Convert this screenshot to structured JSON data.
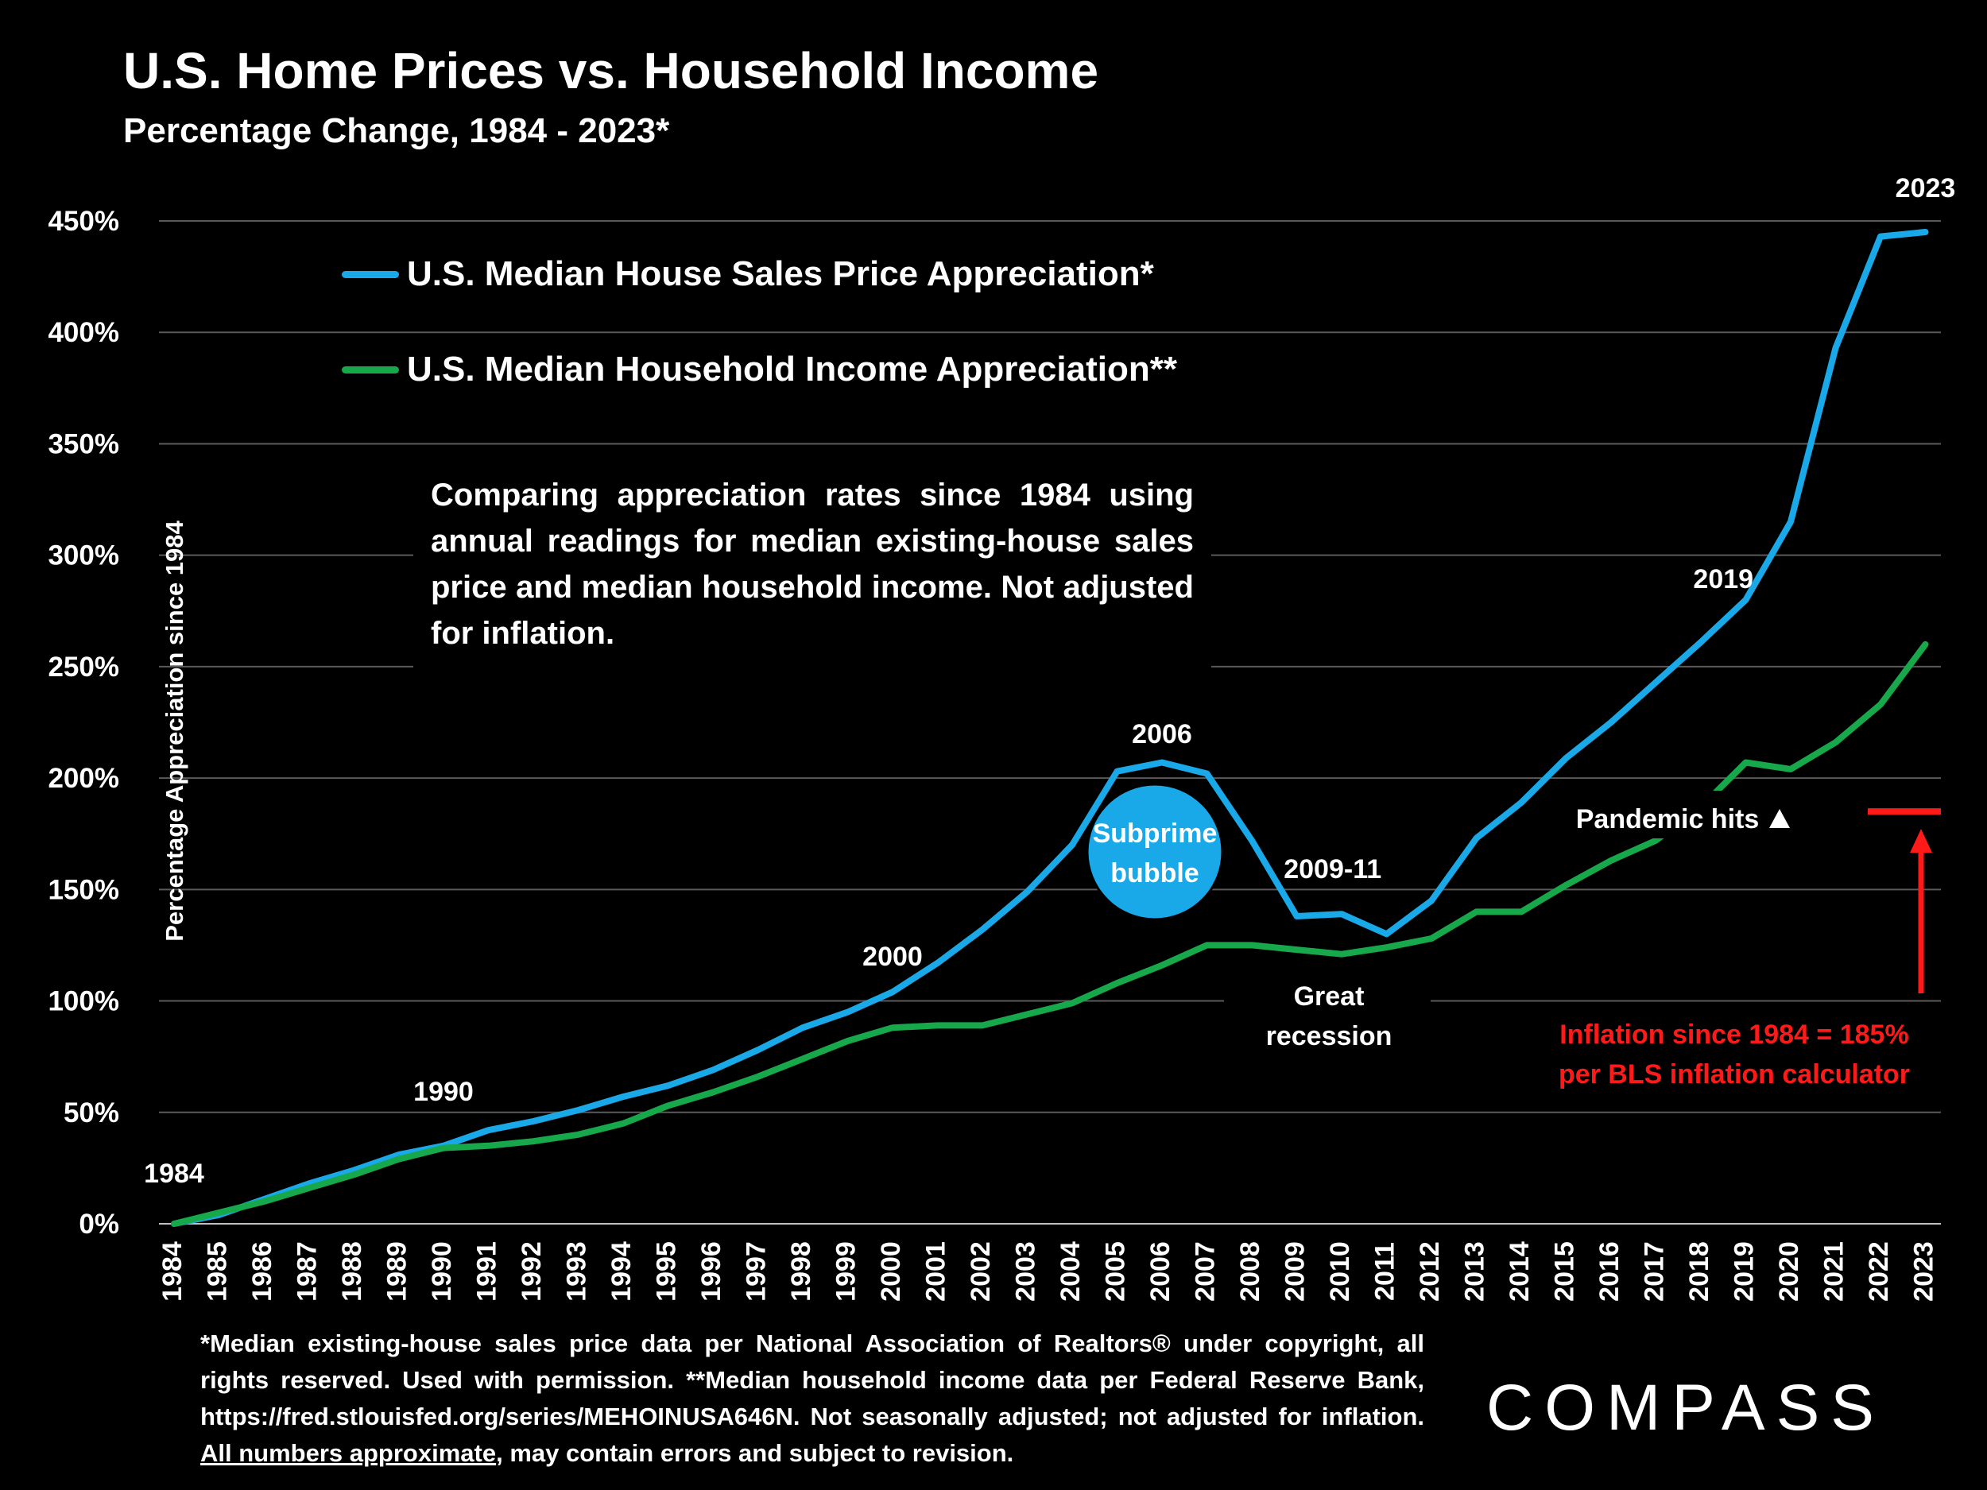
{
  "chart_data": {
    "type": "line",
    "title": "U.S. Home Prices vs. Household Income",
    "subtitle": "Percentage Change, 1984 - 2023*",
    "ylabel": "Percentage Appreciation since 1984",
    "ylim": [
      0,
      450
    ],
    "y_ticks": [
      "0%",
      "50%",
      "100%",
      "150%",
      "200%",
      "250%",
      "300%",
      "350%",
      "400%",
      "450%"
    ],
    "x": [
      "1984",
      "1985",
      "1986",
      "1987",
      "1988",
      "1989",
      "1990",
      "1991",
      "1992",
      "1993",
      "1994",
      "1995",
      "1996",
      "1997",
      "1998",
      "1999",
      "2000",
      "2001",
      "2002",
      "2003",
      "2004",
      "2005",
      "2006",
      "2007",
      "2008",
      "2009",
      "2010",
      "2011",
      "2012",
      "2013",
      "2014",
      "2015",
      "2016",
      "2017",
      "2018",
      "2019",
      "2020",
      "2021",
      "2022",
      "2023"
    ],
    "series": [
      {
        "name": "U.S. Median House Sales Price Appreciation*",
        "color": "#1aa9e8",
        "values": [
          0,
          4,
          11,
          18,
          24,
          31,
          35,
          42,
          46,
          51,
          57,
          62,
          69,
          78,
          88,
          95,
          104,
          117,
          132,
          149,
          170,
          203,
          207,
          202,
          172,
          138,
          139,
          130,
          145,
          173,
          189,
          209,
          225,
          243,
          261,
          280,
          315,
          393,
          443,
          445
        ]
      },
      {
        "name": "U.S. Median Household Income Appreciation**",
        "color": "#16a84a",
        "values": [
          0,
          5,
          10,
          16,
          22,
          29,
          34,
          35,
          37,
          40,
          45,
          53,
          59,
          66,
          74,
          82,
          88,
          89,
          89,
          94,
          99,
          108,
          116,
          125,
          125,
          123,
          121,
          124,
          128,
          140,
          140,
          152,
          163,
          172,
          187,
          207,
          204,
          216,
          233,
          260
        ]
      }
    ],
    "annotations": {
      "y1984": "1984",
      "y1990": "1990",
      "y2000": "2000",
      "y2006": "2006",
      "y2009_11": "2009-11",
      "y2019": "2019",
      "y2023": "2023",
      "subprime_1": "Subprime",
      "subprime_2": "bubble",
      "recession_1": "Great",
      "recession_2": "recession",
      "pandemic": "Pandemic hits",
      "inflation_value": 185,
      "inflation_1": "Inflation since 1984 =  185%",
      "inflation_2": "per BLS inflation calculator"
    },
    "grid": true,
    "legend_position": "top-left"
  },
  "note": "Comparing appreciation rates since 1984 using annual readings for median existing-house sales price and median household income. Not adjusted for inflation.",
  "footnote": {
    "part1": "*Median existing-house sales price data per National Association of Realtors® under copyright, all rights reserved. Used with permission. **Median household income data per Federal Reserve Bank, https://fred.stlouisfed.org/series/MEHOINUSA646N. Not seasonally adjusted; not adjusted for inflation. ",
    "underlined": "All numbers approximate",
    "part2": ", may contain errors and subject to revision."
  },
  "logo": "COMPASS",
  "colors": {
    "inflation": "#ff1a1a",
    "bubble": "#1aa9e8"
  }
}
